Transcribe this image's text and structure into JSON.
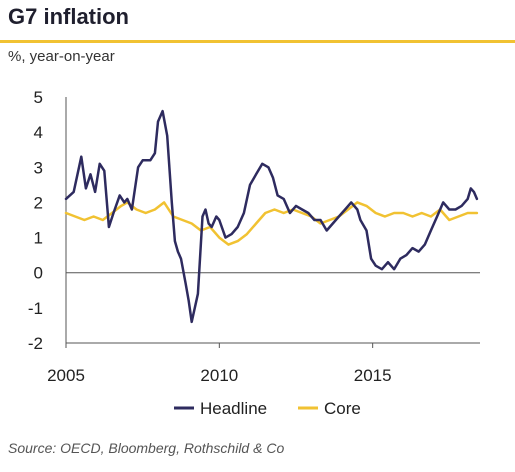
{
  "title": "G7 inflation",
  "subtitle": "%, year-on-year",
  "source": "Source: OECD, Bloomberg, Rothschild & Co",
  "colors": {
    "headline": "#2e2b5f",
    "core": "#f1c232",
    "accent_rule": "#f1c232",
    "axis": "#555555"
  },
  "chart_data": {
    "type": "line",
    "title": "G7 inflation",
    "ylabel": "%, year-on-year",
    "xlim": [
      2005,
      2018.5
    ],
    "ylim": [
      -2,
      5
    ],
    "x_ticks": [
      2005,
      2010,
      2015
    ],
    "y_ticks": [
      -2,
      -1,
      0,
      1,
      2,
      3,
      4,
      5
    ],
    "legend_position": "bottom",
    "series": [
      {
        "name": "Headline",
        "color": "#2e2b5f",
        "x": [
          2005.0,
          2005.25,
          2005.5,
          2005.65,
          2005.8,
          2005.95,
          2006.1,
          2006.25,
          2006.4,
          2006.55,
          2006.75,
          2006.9,
          2007.0,
          2007.15,
          2007.35,
          2007.5,
          2007.75,
          2007.9,
          2008.0,
          2008.15,
          2008.3,
          2008.45,
          2008.55,
          2008.65,
          2008.75,
          2008.9,
          2009.0,
          2009.1,
          2009.2,
          2009.3,
          2009.45,
          2009.55,
          2009.65,
          2009.75,
          2009.9,
          2010.0,
          2010.2,
          2010.4,
          2010.6,
          2010.8,
          2011.0,
          2011.2,
          2011.4,
          2011.6,
          2011.75,
          2011.9,
          2012.1,
          2012.3,
          2012.5,
          2012.7,
          2012.9,
          2013.1,
          2013.3,
          2013.5,
          2013.7,
          2013.9,
          2014.1,
          2014.3,
          2014.5,
          2014.6,
          2014.8,
          2014.95,
          2015.1,
          2015.3,
          2015.5,
          2015.7,
          2015.9,
          2016.1,
          2016.3,
          2016.5,
          2016.7,
          2016.9,
          2017.1,
          2017.3,
          2017.5,
          2017.7,
          2017.9,
          2018.1,
          2018.2,
          2018.3,
          2018.4
        ],
        "values": [
          2.1,
          2.3,
          3.3,
          2.4,
          2.8,
          2.3,
          3.1,
          2.9,
          1.3,
          1.7,
          2.2,
          2.0,
          2.1,
          1.8,
          3.0,
          3.2,
          3.2,
          3.4,
          4.3,
          4.6,
          3.9,
          2.0,
          0.9,
          0.6,
          0.4,
          -0.3,
          -0.8,
          -1.4,
          -1.0,
          -0.6,
          1.6,
          1.8,
          1.4,
          1.3,
          1.6,
          1.5,
          1.0,
          1.1,
          1.3,
          1.7,
          2.5,
          2.8,
          3.1,
          3.0,
          2.7,
          2.2,
          2.1,
          1.7,
          1.9,
          1.8,
          1.7,
          1.5,
          1.5,
          1.2,
          1.4,
          1.6,
          1.8,
          2.0,
          1.8,
          1.5,
          1.2,
          0.4,
          0.2,
          0.1,
          0.3,
          0.1,
          0.4,
          0.5,
          0.7,
          0.6,
          0.8,
          1.2,
          1.6,
          2.0,
          1.8,
          1.8,
          1.9,
          2.1,
          2.4,
          2.3,
          2.1
        ]
      },
      {
        "name": "Core",
        "color": "#f1c232",
        "x": [
          2005.0,
          2005.3,
          2005.6,
          2005.9,
          2006.2,
          2006.5,
          2006.8,
          2007.0,
          2007.3,
          2007.6,
          2007.9,
          2008.2,
          2008.5,
          2008.8,
          2009.1,
          2009.4,
          2009.7,
          2010.0,
          2010.3,
          2010.6,
          2010.9,
          2011.2,
          2011.5,
          2011.8,
          2012.1,
          2012.4,
          2012.7,
          2013.0,
          2013.3,
          2013.6,
          2013.9,
          2014.2,
          2014.5,
          2014.8,
          2015.1,
          2015.4,
          2015.7,
          2016.0,
          2016.3,
          2016.6,
          2016.9,
          2017.2,
          2017.5,
          2017.8,
          2018.1,
          2018.4
        ],
        "values": [
          1.7,
          1.6,
          1.5,
          1.6,
          1.5,
          1.7,
          1.9,
          2.0,
          1.8,
          1.7,
          1.8,
          2.0,
          1.6,
          1.5,
          1.4,
          1.2,
          1.3,
          1.0,
          0.8,
          0.9,
          1.1,
          1.4,
          1.7,
          1.8,
          1.7,
          1.8,
          1.7,
          1.6,
          1.4,
          1.5,
          1.6,
          1.8,
          2.0,
          1.9,
          1.7,
          1.6,
          1.7,
          1.7,
          1.6,
          1.7,
          1.6,
          1.8,
          1.5,
          1.6,
          1.7,
          1.7
        ]
      }
    ]
  }
}
